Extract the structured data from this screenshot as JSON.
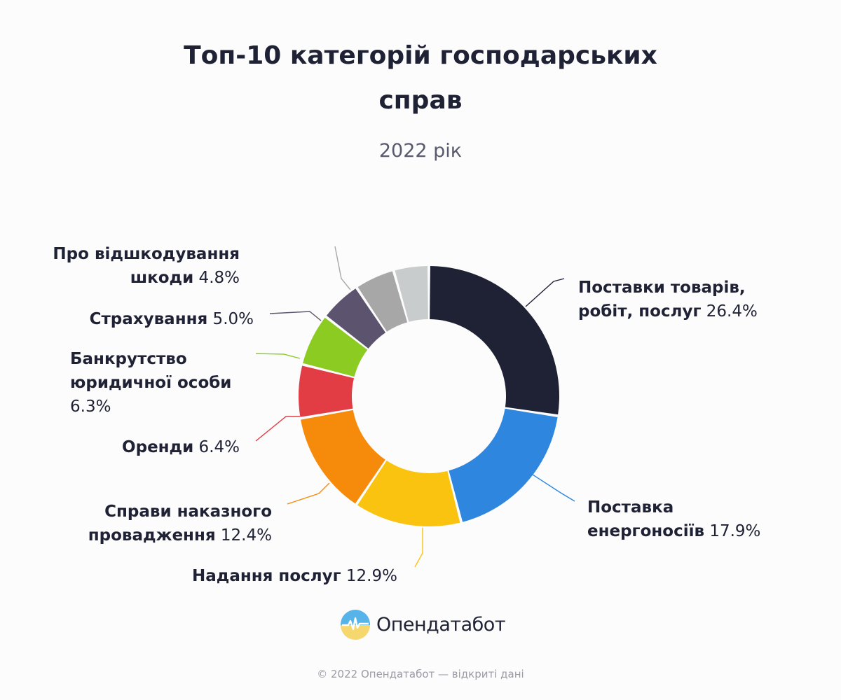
{
  "title": {
    "line1": "Топ-10 категорій господарських",
    "line2": "справ"
  },
  "subtitle": "2022 рік",
  "chart_data": {
    "type": "pie",
    "variant": "donut",
    "title": "Топ-10 категорій господарських справ",
    "subtitle": "2022 рік",
    "unit": "%",
    "slices": [
      {
        "label": "Поставки товарів, робіт, послуг",
        "value": 26.4,
        "color": "#1f2235",
        "label_lines": [
          [
            "Поставки товарів,",
            ""
          ],
          [
            "робіт, послуг",
            "26.4%"
          ]
        ]
      },
      {
        "label": "Поставка енергоносіїв",
        "value": 17.9,
        "color": "#2e86de",
        "label_lines": [
          [
            "Поставка",
            ""
          ],
          [
            "енергоносіїв",
            "17.9%"
          ]
        ]
      },
      {
        "label": "Надання послуг",
        "value": 12.9,
        "color": "#f9c30f",
        "label_lines": [
          [
            "Надання послуг",
            "12.9%"
          ]
        ]
      },
      {
        "label": "Справи наказного провадження",
        "value": 12.4,
        "color": "#f68a0a",
        "label_lines": [
          [
            "Справи наказного",
            ""
          ],
          [
            "провадження",
            "12.4%"
          ]
        ]
      },
      {
        "label": "Оренди",
        "value": 6.4,
        "color": "#e23c44",
        "label_lines": [
          [
            "Оренди",
            "6.4%"
          ]
        ]
      },
      {
        "label": "Банкрутство юридичної особи",
        "value": 6.3,
        "color": "#8ccc22",
        "label_lines": [
          [
            "Банкрутство",
            ""
          ],
          [
            "юридичної особи",
            ""
          ],
          [
            "",
            "6.3%"
          ]
        ]
      },
      {
        "label": "Страхування",
        "value": 5.0,
        "color": "#5c546e",
        "label_lines": [
          [
            "Страхування",
            "5.0%"
          ]
        ]
      },
      {
        "label": "Про відшкодування шкоди",
        "value": 4.8,
        "color": "#a7a7a7",
        "label_lines": [
          [
            "Про відшкодування",
            ""
          ],
          [
            "шкоди",
            "4.8%"
          ]
        ]
      },
      {
        "label": "",
        "value": 4.2,
        "color": "#c9cccc",
        "label_lines": []
      }
    ]
  },
  "brand": {
    "name": "Опендатабот",
    "logo_icon": "opendatabot-logo-icon"
  },
  "footer": "© 2022 Опендатабот — відкриті дані"
}
